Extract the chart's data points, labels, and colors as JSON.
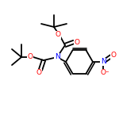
{
  "background_color": "#ffffff",
  "bond_color": "#000000",
  "atom_colors": {
    "N": "#0000ff",
    "O": "#ff0000",
    "C": "#000000"
  },
  "bond_width": 1.3,
  "font_size": 6.5
}
